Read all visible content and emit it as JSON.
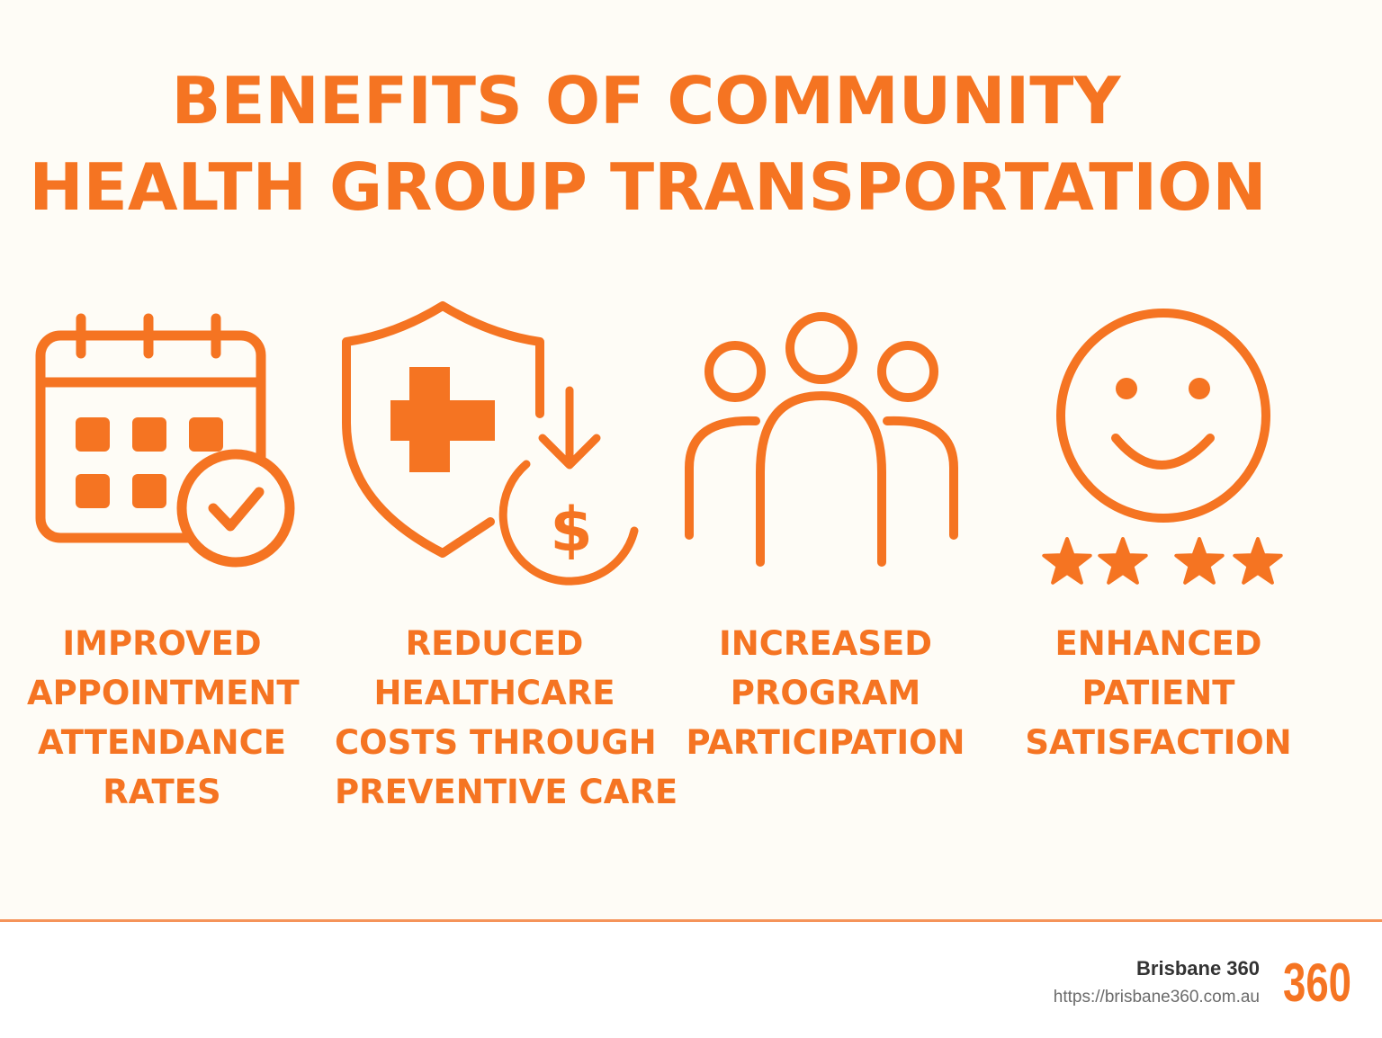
{
  "title": {
    "line1": "BENEFITS OF COMMUNITY",
    "line2": "HEALTH GROUP TRANSPORTATION"
  },
  "benefits": [
    {
      "icon": "calendar-check-icon",
      "lines": [
        "IMPROVED",
        "APPOINTMENT",
        "ATTENDANCE",
        "RATES"
      ]
    },
    {
      "icon": "shield-cost-down-icon",
      "lines": [
        "REDUCED",
        "HEALTHCARE",
        "COSTS THROUGH",
        "PREVENTIVE CARE"
      ]
    },
    {
      "icon": "people-group-icon",
      "lines": [
        "INCREASED",
        "PROGRAM",
        "PARTICIPATION"
      ]
    },
    {
      "icon": "smiley-stars-icon",
      "lines": [
        "ENHANCED",
        "PATIENT",
        "SATISFACTION"
      ],
      "stars": 4
    }
  ],
  "footer": {
    "brand_name": "Brisbane 360",
    "url": "https://brisbane360.com.au",
    "logo_text": "360"
  },
  "colors": {
    "accent": "#f57422",
    "background": "#fefcf6",
    "divider": "#f5945a"
  }
}
